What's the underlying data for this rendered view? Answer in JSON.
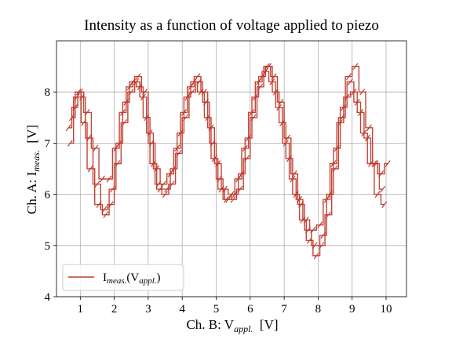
{
  "chart_data": {
    "type": "line",
    "title": "Intensity as a function of voltage applied to piezo",
    "xlabel": {
      "prefix": "Ch. B: V",
      "sub": "appl.",
      "suffix": "  [V]"
    },
    "ylabel": {
      "prefix": "Ch. A: I",
      "sub": "meas.",
      "suffix": "  [V]"
    },
    "xlim": [
      0.3,
      10.6
    ],
    "ylim": [
      4.0,
      9.0
    ],
    "xticks": [
      1,
      2,
      3,
      4,
      5,
      6,
      7,
      8,
      9,
      10
    ],
    "yticks": [
      4,
      5,
      6,
      7,
      8
    ],
    "grid": true,
    "legend_position": "lower left",
    "series": [
      {
        "name": {
          "main": "I",
          "sub": "meas.",
          "mid": "(V",
          "sub2": "appl.",
          "end": ")"
        },
        "color": "#c0392b",
        "sweeps": [
          {
            "x": [
              0.65,
              0.85,
              1.0,
              1.2,
              1.45,
              1.65,
              1.85,
              2.05,
              2.25,
              2.45,
              2.65,
              2.85,
              3.05,
              3.25,
              3.45,
              3.65,
              3.85,
              4.05,
              4.25,
              4.45,
              4.65,
              4.85,
              5.05,
              5.25,
              5.45,
              5.65,
              5.85,
              6.05,
              6.25,
              6.45,
              6.65,
              6.85,
              7.05,
              7.25,
              7.45,
              7.65,
              7.85,
              8.05,
              8.25,
              8.45,
              8.65,
              8.85,
              9.05,
              9.25,
              9.45,
              9.65,
              9.85,
              10.05
            ],
            "y": [
              7.3,
              7.7,
              8.0,
              7.6,
              6.9,
              6.3,
              6.3,
              6.9,
              7.6,
              8.1,
              8.2,
              7.9,
              7.2,
              6.5,
              6.2,
              6.4,
              6.9,
              7.6,
              8.1,
              8.3,
              8.0,
              7.3,
              6.6,
              6.1,
              6.0,
              6.3,
              6.9,
              7.6,
              8.2,
              8.4,
              8.2,
              7.7,
              7.0,
              6.3,
              5.9,
              5.5,
              5.3,
              5.4,
              5.9,
              6.6,
              7.4,
              7.9,
              8.0,
              7.6,
              7.1,
              6.6,
              6.4,
              6.6
            ]
          },
          {
            "x": [
              0.7,
              0.9,
              1.05,
              1.25,
              1.5,
              1.7,
              1.9,
              2.1,
              2.3,
              2.5,
              2.7,
              2.9,
              3.1,
              3.3,
              3.5,
              3.7,
              3.9,
              4.1,
              4.3,
              4.5,
              4.7,
              4.9,
              5.1,
              5.3,
              5.5,
              5.7,
              5.9,
              6.1,
              6.3,
              6.5,
              6.7,
              6.9,
              7.1,
              7.3,
              7.5,
              7.7,
              7.9,
              8.1,
              8.3,
              8.5,
              8.7,
              8.9,
              9.1,
              9.3,
              9.5,
              9.7,
              9.9
            ],
            "y": [
              7.0,
              7.9,
              7.9,
              7.1,
              6.2,
              5.7,
              5.8,
              6.6,
              7.4,
              8.0,
              8.3,
              8.0,
              7.0,
              6.2,
              6.0,
              6.2,
              6.8,
              7.5,
              8.0,
              8.2,
              7.8,
              7.0,
              6.3,
              5.9,
              5.9,
              6.1,
              6.7,
              7.5,
              8.1,
              8.5,
              8.3,
              7.8,
              7.1,
              6.4,
              5.8,
              5.3,
              5.0,
              5.0,
              5.6,
              6.5,
              7.5,
              8.3,
              8.5,
              8.0,
              7.3,
              6.6,
              6.1
            ]
          },
          {
            "x": [
              0.75,
              0.95,
              1.1,
              1.3,
              1.55,
              1.75,
              1.95,
              2.15,
              2.35,
              2.55,
              2.75,
              2.95,
              3.15,
              3.35,
              3.55,
              3.75,
              3.95,
              4.15,
              4.35,
              4.55,
              4.75,
              4.95,
              5.15,
              5.35,
              5.55,
              5.75,
              5.95,
              6.15,
              6.35,
              6.55,
              6.75,
              6.95,
              7.15,
              7.35,
              7.55,
              7.75,
              7.95,
              8.15,
              8.35,
              8.55,
              8.75,
              8.95,
              9.15,
              9.35,
              9.55,
              9.75,
              9.95
            ],
            "y": [
              7.5,
              8.0,
              7.4,
              6.5,
              5.8,
              5.6,
              6.1,
              7.0,
              7.8,
              8.2,
              8.1,
              7.5,
              6.6,
              6.1,
              6.1,
              6.5,
              7.2,
              7.9,
              8.2,
              8.0,
              7.5,
              6.7,
              6.1,
              5.9,
              6.0,
              6.4,
              7.1,
              7.9,
              8.3,
              8.5,
              8.0,
              7.4,
              6.7,
              6.0,
              5.5,
              5.1,
              4.8,
              5.2,
              6.0,
              6.9,
              7.7,
              8.2,
              7.8,
              7.2,
              6.6,
              6.0,
              5.8
            ]
          }
        ]
      }
    ]
  }
}
